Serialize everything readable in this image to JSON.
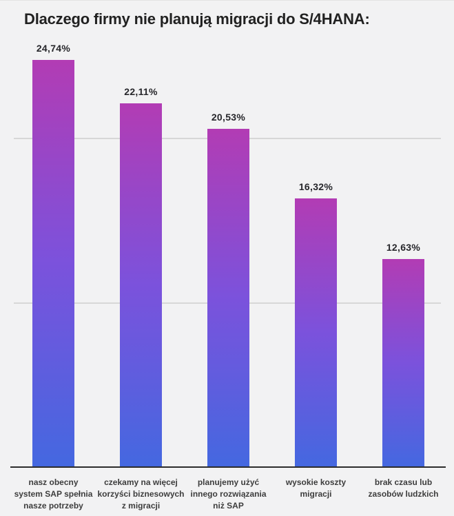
{
  "chart_data": {
    "type": "bar",
    "title": "Dlaczego firmy nie planują migracji do S/4HANA:",
    "categories": [
      "nasz obecny system SAP spełnia nasze potrzeby",
      "czekamy na więcej korzyści biznesowych z migracji",
      "planujemy użyć innego rozwiązania niż SAP",
      "wysokie koszty migracji",
      "brak czasu lub zasobów ludzkich"
    ],
    "category_lines": [
      [
        "nasz obecny",
        "system SAP spełnia",
        "nasze potrzeby"
      ],
      [
        "czekamy na więcej",
        "korzyści biznesowych",
        "z migracji"
      ],
      [
        "planujemy użyć",
        "innego rozwiązania",
        "niż SAP"
      ],
      [
        "wysokie koszty",
        "migracji"
      ],
      [
        "brak czasu lub",
        "zasobów ludzkich"
      ]
    ],
    "values": [
      24.74,
      22.11,
      20.53,
      16.32,
      12.63
    ],
    "value_labels": [
      "24,74%",
      "22,11%",
      "20,53%",
      "16,32%",
      "12,63%"
    ],
    "xlabel": "",
    "ylabel": "",
    "ylim": [
      0,
      25
    ],
    "gridlines": [
      10,
      20
    ],
    "grid": "horizontal-only",
    "legend": "none",
    "bar_gradient": {
      "top": "#b23cb4",
      "mid": "#7b52dc",
      "bottom": "#4468e0"
    },
    "colors": {
      "background": "#f2f2f3",
      "gridline": "#d7d7d7",
      "axis_line": "#2b2b2b",
      "title_text": "#212121",
      "value_label_text": "#26262a",
      "category_label_text": "#3d3d3d"
    }
  }
}
